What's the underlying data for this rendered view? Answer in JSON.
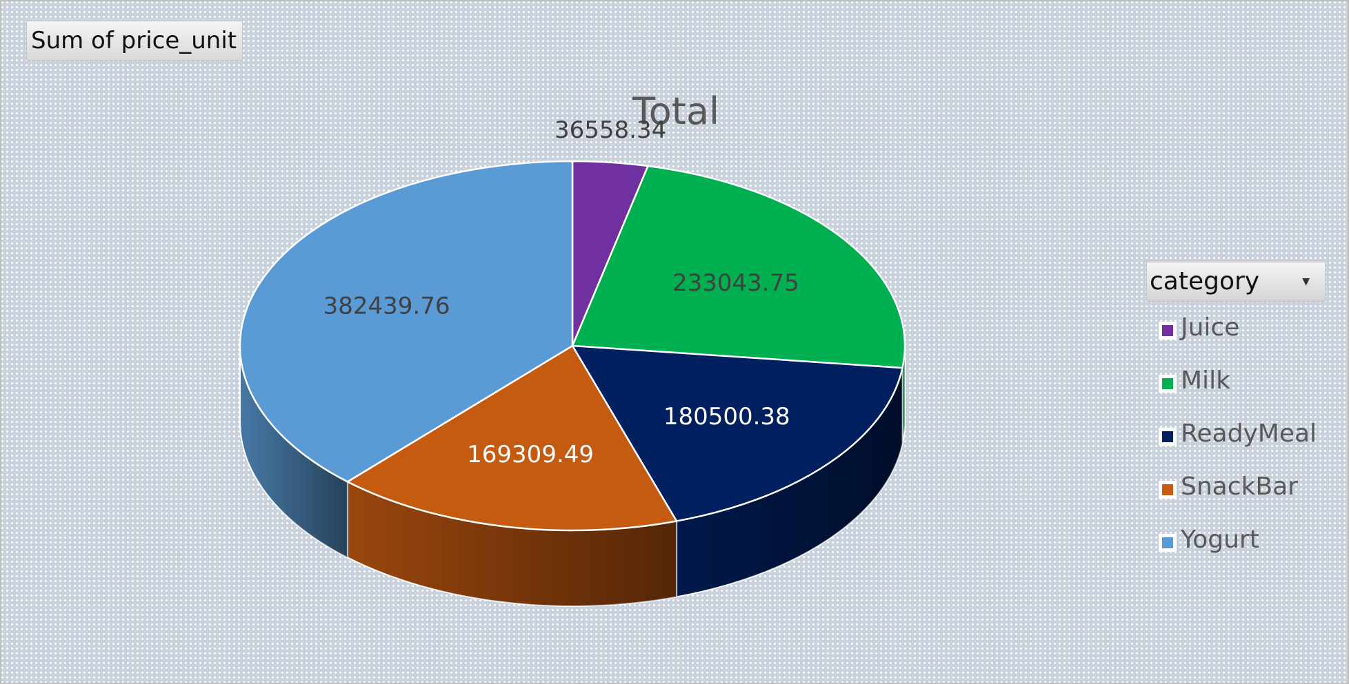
{
  "value_field_button": "Sum of price_unit",
  "filter_button": {
    "label": "category",
    "icon": "chevron-down-icon"
  },
  "chart_data": {
    "type": "pie",
    "title": "Total",
    "style": "3d-pie",
    "categories": [
      "Juice",
      "Milk",
      "ReadyMeal",
      "SnackBar",
      "Yogurt"
    ],
    "values": [
      36558.34,
      233043.75,
      180500.38,
      169309.49,
      382439.76
    ],
    "data_labels": [
      "36558.34",
      "233043.75",
      "180500.38",
      "169309.49",
      "382439.76"
    ],
    "colors": [
      "#7030a0",
      "#00b050",
      "#002060",
      "#c55a11",
      "#5b9bd5"
    ],
    "legend_placement": "right"
  }
}
